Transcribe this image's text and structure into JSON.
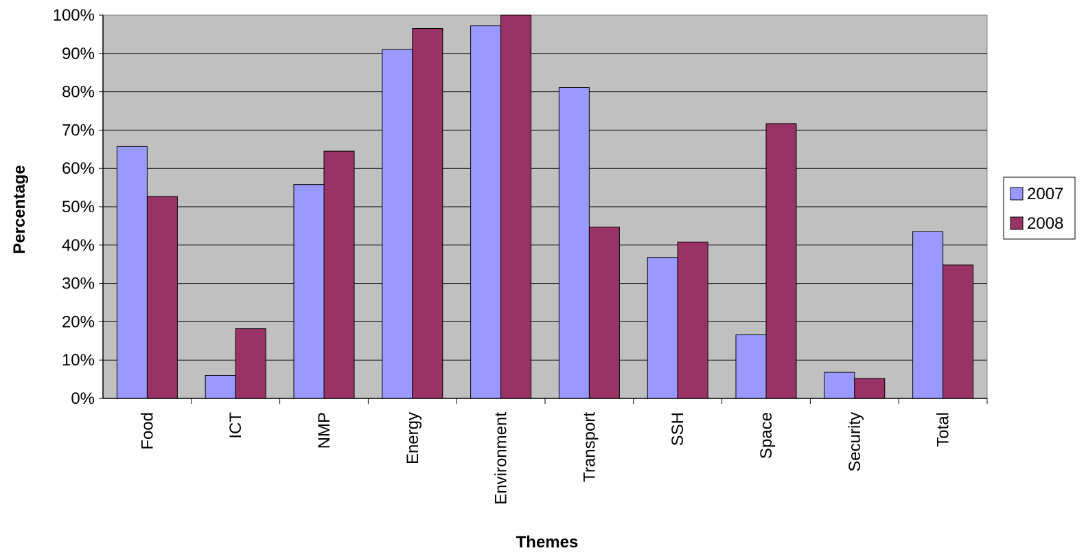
{
  "chart_data": {
    "type": "bar",
    "title": "",
    "xlabel": "Themes",
    "ylabel": "Percentage",
    "categories": [
      "Food",
      "ICT",
      "NMP",
      "Energy",
      "Environment",
      "Transport",
      "SSH",
      "Space",
      "Security",
      "Total"
    ],
    "series": [
      {
        "name": "2007",
        "color": "#9999ff",
        "values": [
          0.657,
          0.06,
          0.558,
          0.91,
          0.972,
          0.811,
          0.368,
          0.166,
          0.068,
          0.435
        ]
      },
      {
        "name": "2008",
        "color": "#993366",
        "values": [
          0.527,
          0.182,
          0.645,
          0.965,
          1.0,
          0.447,
          0.408,
          0.717,
          0.052,
          0.348
        ]
      }
    ],
    "ylim": [
      0,
      1
    ],
    "yticks": [
      "0%",
      "10%",
      "20%",
      "30%",
      "40%",
      "50%",
      "60%",
      "70%",
      "80%",
      "90%",
      "100%"
    ],
    "grid": true,
    "plot_background": "#c0c0c0",
    "legend_position": "right"
  }
}
